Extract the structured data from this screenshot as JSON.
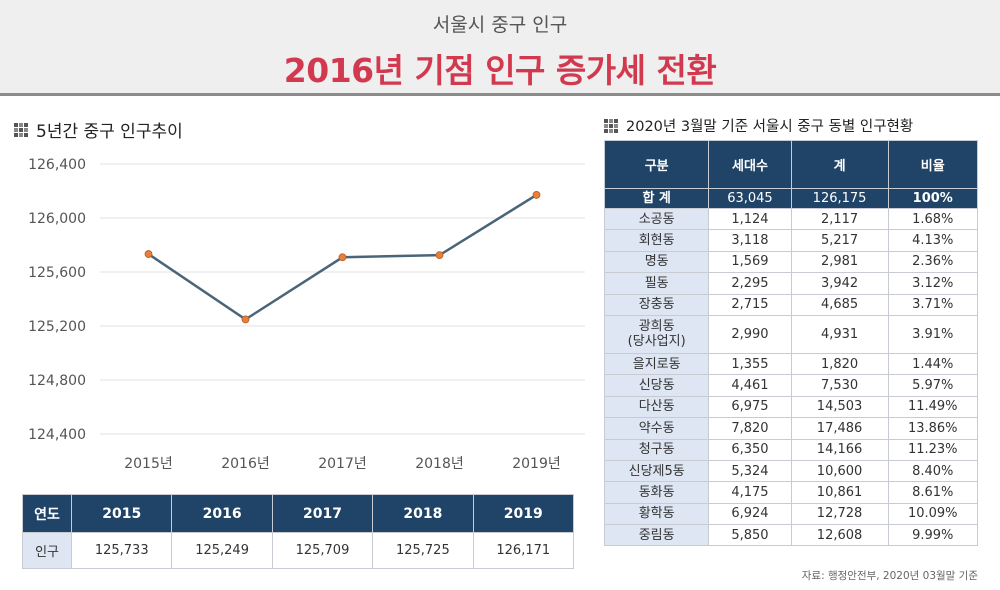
{
  "header": {
    "subtitle": "서울시 중구 인구",
    "title": "2016년 기점 인구 증가세 전환"
  },
  "left_section": {
    "title": "5년간 중구 인구추이"
  },
  "right_section": {
    "title": "2020년 3월말 기준 서울시 중구 동별 인구현황"
  },
  "chart_data": {
    "type": "line",
    "title": "5년간 중구 인구추이",
    "categories": [
      "2015년",
      "2016년",
      "2017년",
      "2018년",
      "2019년"
    ],
    "series": [
      {
        "values": [
          125733,
          125249,
          125709,
          125725,
          126171
        ]
      }
    ],
    "ylim": [
      124400,
      126400
    ],
    "yticks": [
      "126,400",
      "126,000",
      "125,600",
      "125,200",
      "124,800",
      "124,400"
    ],
    "ytick_values": [
      126400,
      126000,
      125600,
      125200,
      124800,
      124400
    ],
    "grid": true,
    "legend": "none",
    "line_color": "#4a6478",
    "marker_color": "#e8803a"
  },
  "year_table": {
    "header_label": "연도",
    "row_label": "인구",
    "years": [
      "2015",
      "2016",
      "2017",
      "2018",
      "2019"
    ],
    "values": [
      "125,733",
      "125,249",
      "125,709",
      "125,725",
      "126,171"
    ]
  },
  "dong_table": {
    "headers": [
      "구분",
      "세대수",
      "계",
      "비율"
    ],
    "total": {
      "label": "합  계",
      "households": "63,045",
      "population": "126,175",
      "ratio": "100%"
    },
    "rows": [
      {
        "name": "소공동",
        "households": "1,124",
        "population": "2,117",
        "ratio": "1.68%"
      },
      {
        "name": "회현동",
        "households": "3,118",
        "population": "5,217",
        "ratio": "4.13%"
      },
      {
        "name": "명동",
        "households": "1,569",
        "population": "2,981",
        "ratio": "2.36%"
      },
      {
        "name": "필동",
        "households": "2,295",
        "population": "3,942",
        "ratio": "3.12%"
      },
      {
        "name": "장충동",
        "households": "2,715",
        "population": "4,685",
        "ratio": "3.71%"
      },
      {
        "name": "광희동 (당사업지)",
        "households": "2,990",
        "population": "4,931",
        "ratio": "3.91%"
      },
      {
        "name": "을지로동",
        "households": "1,355",
        "population": "1,820",
        "ratio": "1.44%"
      },
      {
        "name": "신당동",
        "households": "4,461",
        "population": "7,530",
        "ratio": "5.97%"
      },
      {
        "name": "다산동",
        "households": "6,975",
        "population": "14,503",
        "ratio": "11.49%"
      },
      {
        "name": "약수동",
        "households": "7,820",
        "population": "17,486",
        "ratio": "13.86%"
      },
      {
        "name": "청구동",
        "households": "6,350",
        "population": "14,166",
        "ratio": "11.23%"
      },
      {
        "name": "신당제5동",
        "households": "5,324",
        "population": "10,600",
        "ratio": "8.40%"
      },
      {
        "name": "동화동",
        "households": "4,175",
        "population": "10,861",
        "ratio": "8.61%"
      },
      {
        "name": "황학동",
        "households": "6,924",
        "population": "12,728",
        "ratio": "10.09%"
      },
      {
        "name": "중림동",
        "households": "5,850",
        "population": "12,608",
        "ratio": "9.99%"
      }
    ]
  },
  "source": "자료: 행정안전부, 2020년 03월말 기준"
}
